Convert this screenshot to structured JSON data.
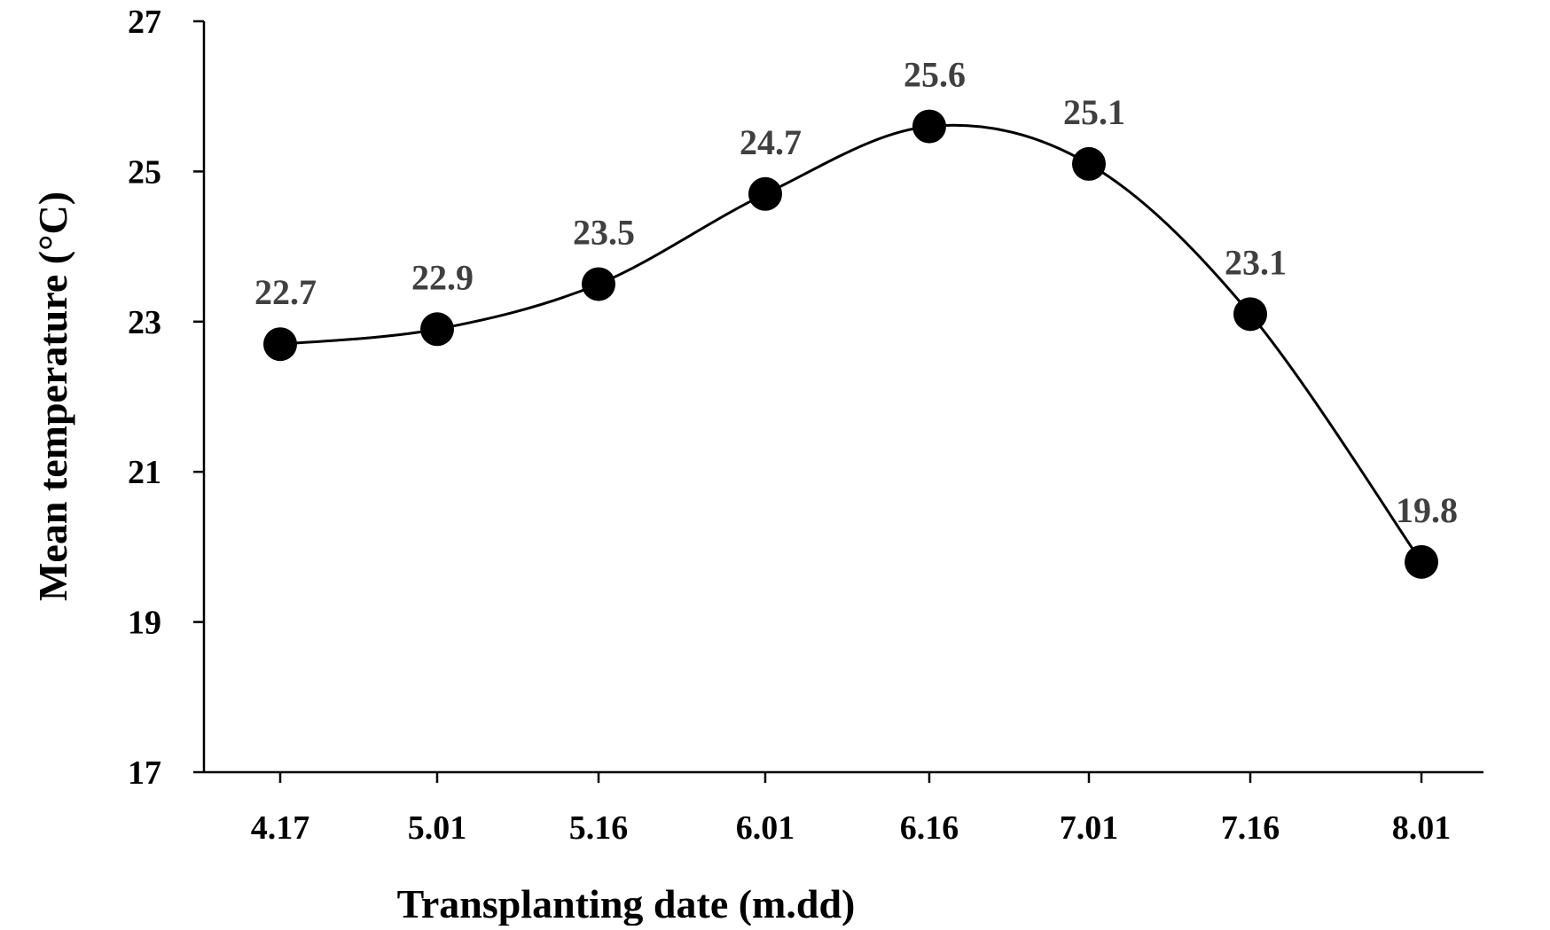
{
  "chart_data": {
    "type": "line",
    "title": "",
    "xlabel": "Transplanting date (m.dd)",
    "ylabel": "Mean temperature (°C)",
    "categories": [
      "4.17",
      "5.01",
      "5.16",
      "6.01",
      "6.16",
      "7.01",
      "7.16",
      "8.01"
    ],
    "series": [
      {
        "values": [
          22.7,
          22.9,
          23.5,
          24.7,
          25.6,
          25.1,
          23.1,
          19.8
        ],
        "labels": [
          "22.7",
          "22.9",
          "23.5",
          "24.7",
          "25.6",
          "25.1",
          "23.1",
          "19.8"
        ]
      }
    ],
    "ylim": [
      17,
      27
    ],
    "yticks": [
      "17",
      "19",
      "21",
      "23",
      "25",
      "27"
    ],
    "grid": false,
    "legend": "none",
    "line_style": "smooth",
    "marker": "filled-circle",
    "colors": {
      "line": "#000000",
      "marker": "#000000",
      "axis": "#000000",
      "data_label": "#404040"
    }
  }
}
